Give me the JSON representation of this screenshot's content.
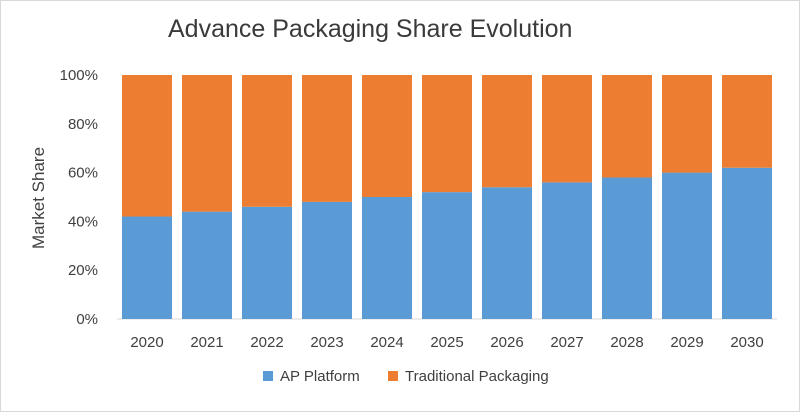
{
  "chart_data": {
    "type": "bar",
    "stacked": true,
    "title": "Advance Packaging Share Evolution",
    "xlabel": "",
    "ylabel": "Market Share",
    "categories": [
      "2020",
      "2021",
      "2022",
      "2023",
      "2024",
      "2025",
      "2026",
      "2027",
      "2028",
      "2029",
      "2030"
    ],
    "series": [
      {
        "name": "AP Platform",
        "color": "#5b9bd5",
        "values": [
          42,
          44,
          46,
          48,
          50,
          52,
          54,
          56,
          58,
          60,
          62
        ]
      },
      {
        "name": "Traditional Packaging",
        "color": "#ed7d31",
        "values": [
          58,
          56,
          54,
          52,
          50,
          48,
          46,
          44,
          42,
          40,
          38
        ]
      }
    ],
    "ylim": [
      0,
      100
    ],
    "yticks": [
      "0%",
      "20%",
      "40%",
      "60%",
      "80%",
      "100%"
    ],
    "grid": false,
    "legend_position": "bottom"
  }
}
